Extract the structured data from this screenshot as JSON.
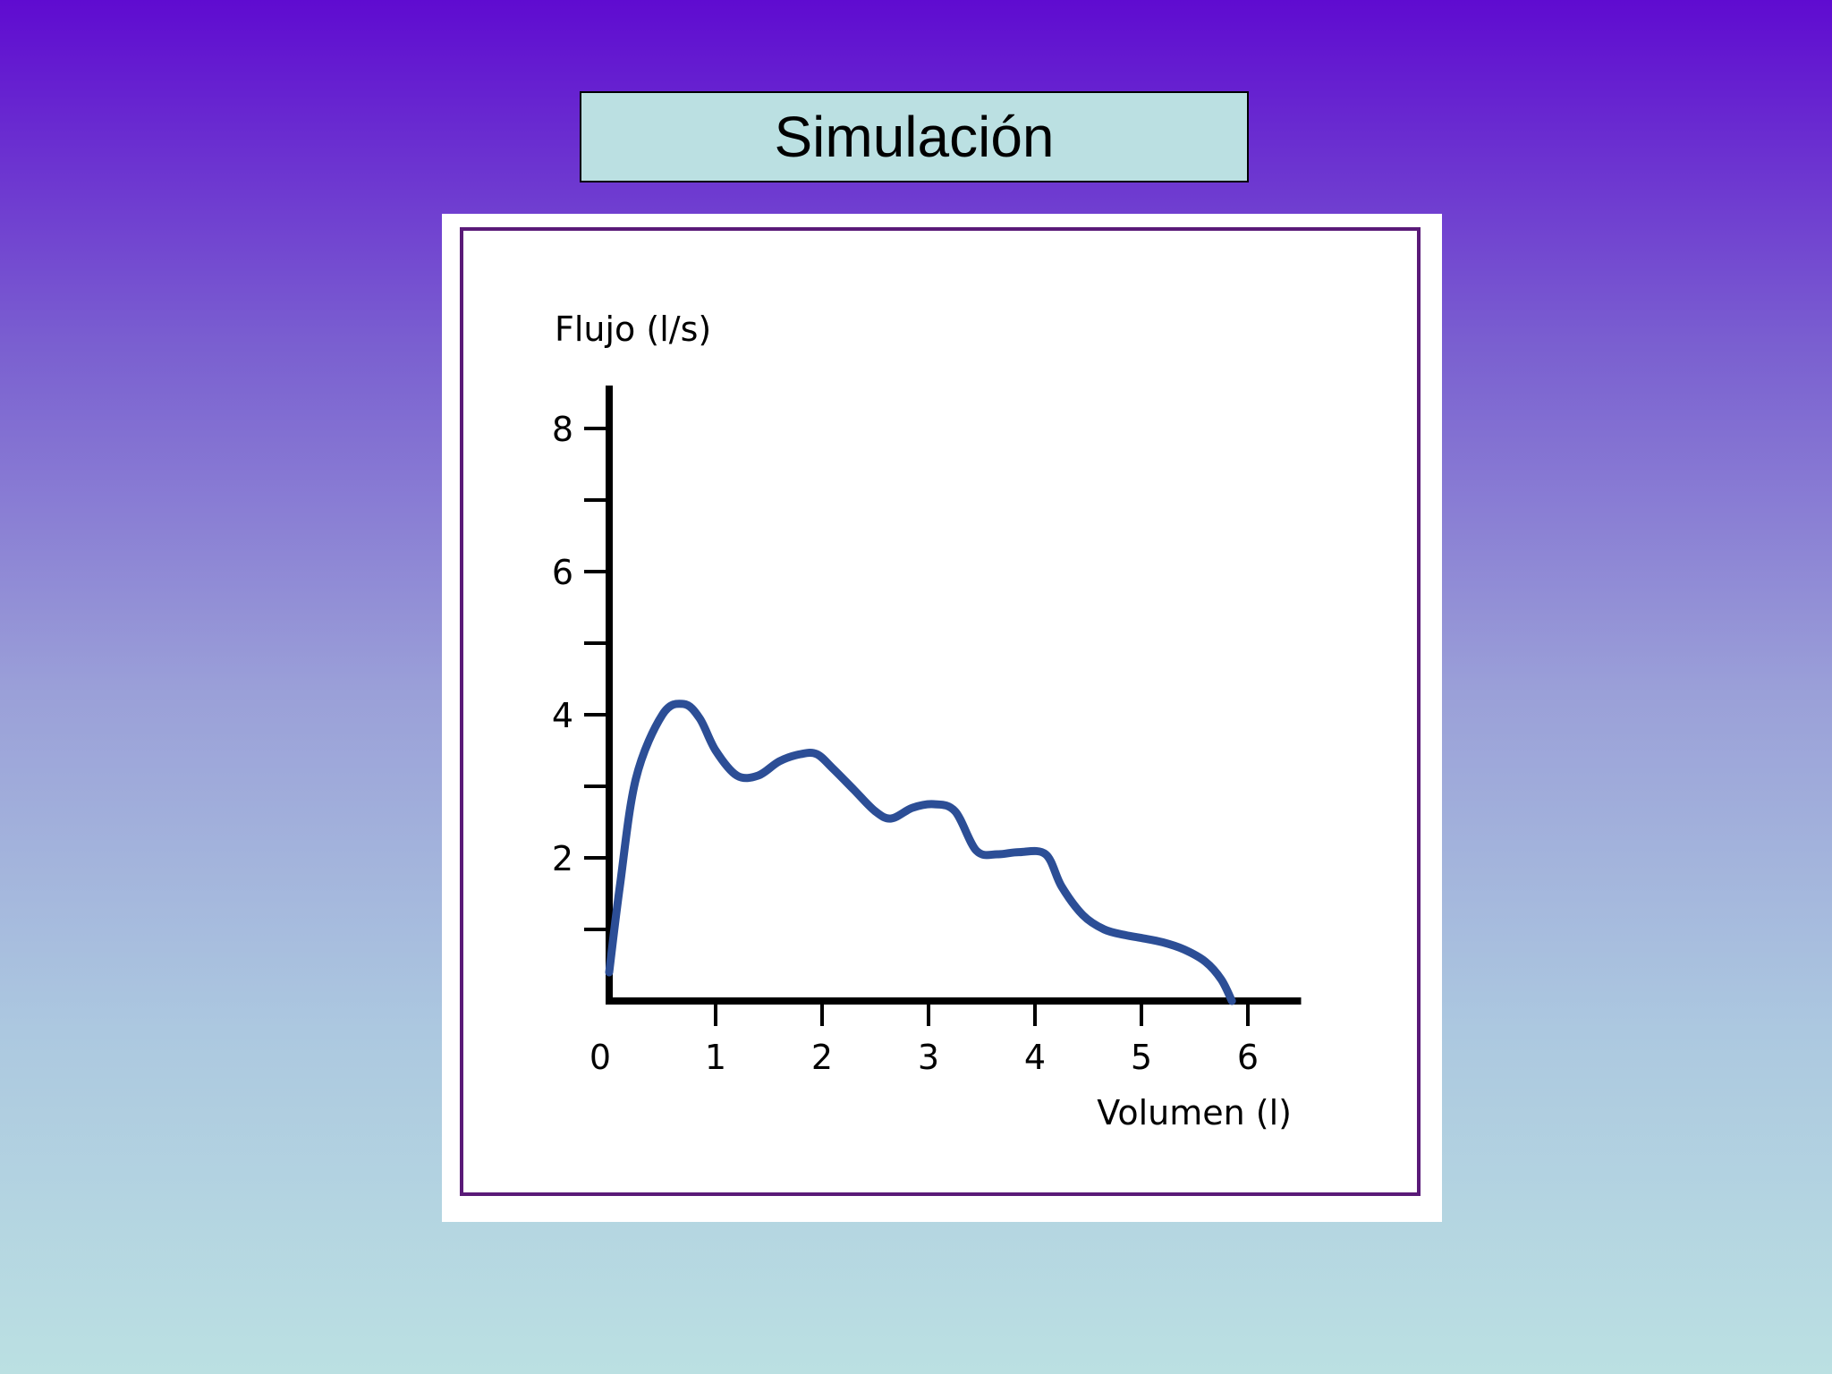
{
  "slide": {
    "title": "Simulación"
  },
  "chart_data": {
    "type": "line",
    "title": "",
    "ylabel": "Flujo (l/s)",
    "xlabel": "Volumen (l)",
    "xlim": [
      0,
      6.5
    ],
    "ylim": [
      0,
      8.6
    ],
    "x_ticks": [
      0,
      1,
      2,
      3,
      4,
      5,
      6
    ],
    "y_tick_labels": [
      2,
      4,
      6,
      8
    ],
    "y_minor_ticks": [
      1,
      3,
      5,
      7
    ],
    "grid": false,
    "line_color": "#2c4e96",
    "series": [
      {
        "x": [
          0.0,
          0.1,
          0.25,
          0.5,
          0.7,
          0.85,
          1.0,
          1.2,
          1.4,
          1.6,
          1.8,
          1.95,
          2.1,
          2.3,
          2.5,
          2.65,
          2.85,
          3.05,
          3.25,
          3.45,
          3.65,
          3.85,
          4.1,
          4.25,
          4.45,
          4.65,
          4.85,
          5.0,
          5.2,
          5.4,
          5.6,
          5.75,
          5.85
        ],
        "y": [
          0.4,
          1.6,
          3.1,
          4.0,
          4.15,
          3.95,
          3.5,
          3.15,
          3.15,
          3.35,
          3.45,
          3.45,
          3.25,
          2.95,
          2.65,
          2.55,
          2.7,
          2.75,
          2.65,
          2.1,
          2.05,
          2.08,
          2.05,
          1.6,
          1.2,
          1.0,
          0.92,
          0.88,
          0.82,
          0.72,
          0.55,
          0.3,
          0.0
        ]
      }
    ]
  }
}
